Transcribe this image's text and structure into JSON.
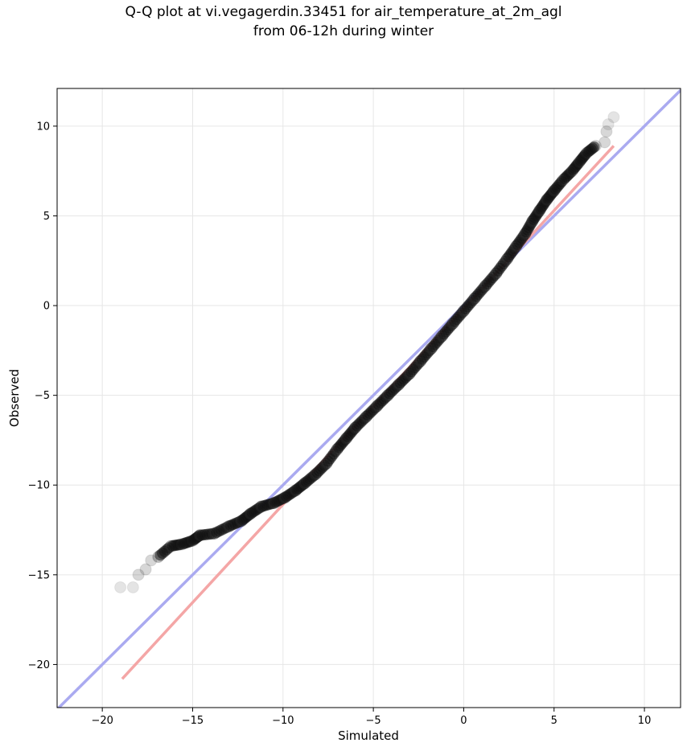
{
  "chart_data": {
    "type": "scatter",
    "title_lines": [
      "Q-Q plot at vi.vegagerdin.33451 for air_temperature_at_2m_agl",
      "from 06-12h during winter"
    ],
    "xlabel": "Simulated",
    "ylabel": "Observed",
    "xlim": [
      -22.5,
      12.0
    ],
    "ylim": [
      -22.4,
      12.1
    ],
    "xticks": [
      -20,
      -15,
      -10,
      -5,
      0,
      5,
      10
    ],
    "yticks": [
      -20,
      -15,
      -10,
      -5,
      0,
      5,
      10
    ],
    "grid": true,
    "reference_lines": [
      {
        "label": "1:1",
        "color": "#aaaaf0",
        "points": [
          [
            -22.5,
            -22.5
          ],
          [
            12.0,
            12.0
          ]
        ]
      },
      {
        "label": "fit",
        "color": "#f4a6a6",
        "points": [
          [
            -18.9,
            -20.8
          ],
          [
            8.3,
            8.9
          ]
        ]
      }
    ],
    "quantile_curve": [
      [
        -19.0,
        -15.7
      ],
      [
        -18.3,
        -15.7
      ],
      [
        -18.0,
        -15.0
      ],
      [
        -17.6,
        -14.7
      ],
      [
        -17.3,
        -14.2
      ],
      [
        -16.9,
        -14.0
      ],
      [
        -16.2,
        -13.4
      ],
      [
        -15.6,
        -13.3
      ],
      [
        -15.0,
        -13.1
      ],
      [
        -14.6,
        -12.8
      ],
      [
        -13.8,
        -12.7
      ],
      [
        -13.0,
        -12.3
      ],
      [
        -12.3,
        -12.0
      ],
      [
        -11.8,
        -11.6
      ],
      [
        -11.2,
        -11.2
      ],
      [
        -10.5,
        -11.0
      ],
      [
        -9.9,
        -10.7
      ],
      [
        -9.3,
        -10.3
      ],
      [
        -8.8,
        -9.9
      ],
      [
        -8.2,
        -9.4
      ],
      [
        -7.6,
        -8.8
      ],
      [
        -7.0,
        -8.0
      ],
      [
        -6.5,
        -7.4
      ],
      [
        -6.0,
        -6.8
      ],
      [
        -5.4,
        -6.2
      ],
      [
        -4.8,
        -5.6
      ],
      [
        -4.2,
        -5.0
      ],
      [
        -3.6,
        -4.4
      ],
      [
        -3.0,
        -3.8
      ],
      [
        -2.4,
        -3.1
      ],
      [
        -1.8,
        -2.4
      ],
      [
        -1.2,
        -1.7
      ],
      [
        -0.6,
        -1.0
      ],
      [
        0.0,
        -0.3
      ],
      [
        0.6,
        0.4
      ],
      [
        1.2,
        1.1
      ],
      [
        1.8,
        1.8
      ],
      [
        2.4,
        2.6
      ],
      [
        2.9,
        3.3
      ],
      [
        3.4,
        4.0
      ],
      [
        3.8,
        4.7
      ],
      [
        4.2,
        5.3
      ],
      [
        4.6,
        5.9
      ],
      [
        5.0,
        6.4
      ],
      [
        5.5,
        7.0
      ],
      [
        6.0,
        7.5
      ],
      [
        6.4,
        8.0
      ],
      [
        6.8,
        8.5
      ],
      [
        7.3,
        8.9
      ],
      [
        7.8,
        9.1
      ],
      [
        7.9,
        9.7
      ],
      [
        8.0,
        10.1
      ],
      [
        8.3,
        10.5
      ]
    ]
  }
}
